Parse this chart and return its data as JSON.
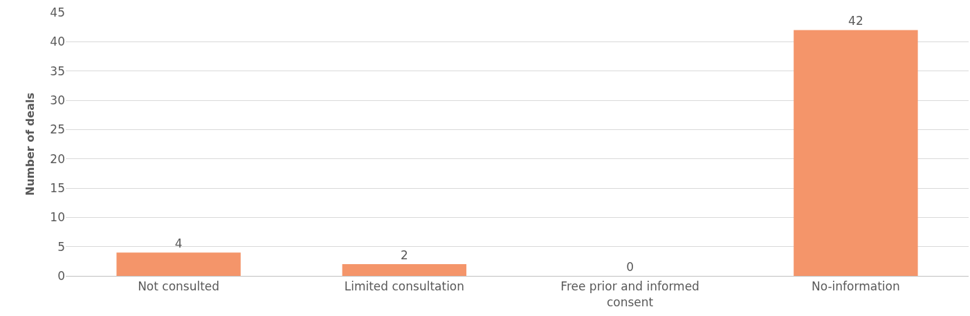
{
  "chart_data": {
    "type": "bar",
    "ylabel": "Number of deals",
    "categories": [
      "Not consulted",
      "Limited consultation",
      "Free prior and informed consent",
      "No-information"
    ],
    "values": [
      4,
      2,
      0,
      42
    ],
    "color": "#f4956a",
    "ylim": [
      0,
      45
    ],
    "yticks": [
      0,
      5,
      10,
      15,
      20,
      25,
      30,
      35,
      40,
      45
    ],
    "grid": "y",
    "data_labels": true
  }
}
